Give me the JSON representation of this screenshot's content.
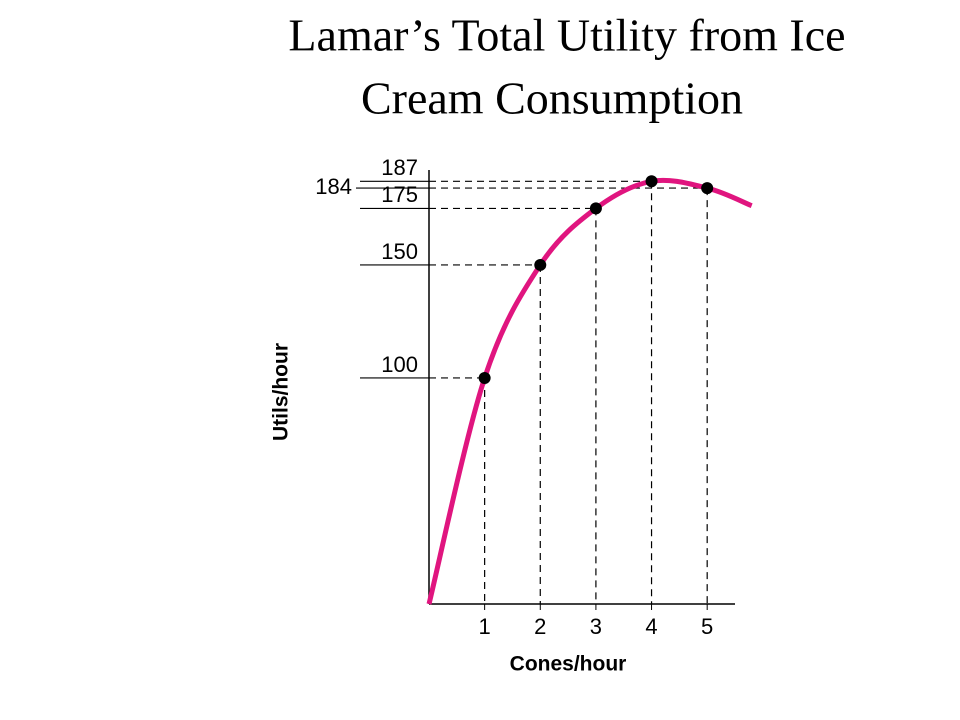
{
  "chart_data": {
    "type": "line",
    "title": [
      "Lamar’s Total Utility from Ice",
      "Cream Consumption"
    ],
    "x_label": "Cones/hour",
    "y_label": "Utils/hour",
    "x": [
      1,
      2,
      3,
      4,
      5
    ],
    "values": [
      100,
      150,
      175,
      187,
      184
    ],
    "color": "#e0157f",
    "xlim": [
      0,
      5.5
    ],
    "ylim": [
      0,
      192
    ],
    "xticks": [
      1,
      2,
      3,
      4,
      5
    ],
    "yticks": [
      100,
      150,
      175,
      184,
      187
    ]
  }
}
